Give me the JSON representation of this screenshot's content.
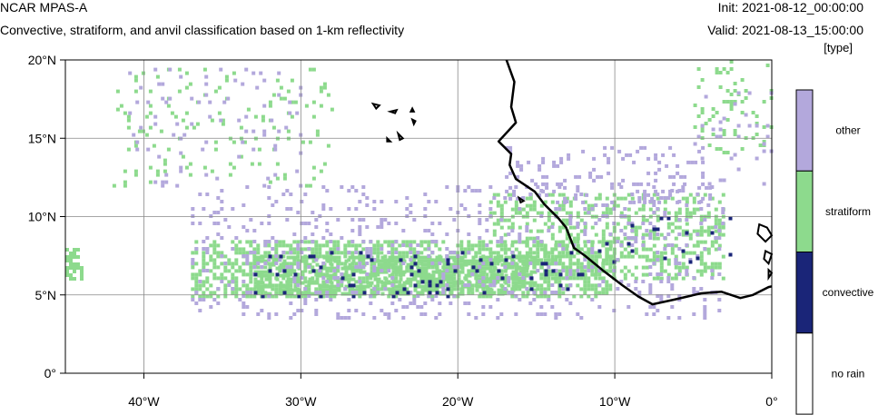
{
  "header": {
    "model": "NCAR MPAS-A",
    "description": "Convective, stratiform, and anvil classification based on 1-km reflectivity",
    "init": "Init: 2021-08-12_00:00:00",
    "valid": "Valid: 2021-08-13_15:00:00",
    "units": "[type]"
  },
  "map": {
    "extent": {
      "lon": [
        -45,
        0
      ],
      "lat": [
        0,
        20
      ]
    },
    "lat_ticks": [
      {
        "value": 20,
        "label": "20°N"
      },
      {
        "value": 15,
        "label": "15°N"
      },
      {
        "value": 10,
        "label": "10°N"
      },
      {
        "value": 5,
        "label": "5°N"
      },
      {
        "value": 0,
        "label": "0°"
      }
    ],
    "lon_ticks": [
      {
        "value": -40,
        "label": "40°W"
      },
      {
        "value": -30,
        "label": "30°W"
      },
      {
        "value": -20,
        "label": "20°W"
      },
      {
        "value": -10,
        "label": "10°W"
      },
      {
        "value": 0,
        "label": "0°"
      }
    ],
    "gridlines": true,
    "coastline": [
      [
        -16.9,
        20
      ],
      [
        -16.4,
        18.6
      ],
      [
        -16.6,
        17
      ],
      [
        -16.3,
        16
      ],
      [
        -17.4,
        14.8
      ],
      [
        -16.6,
        14
      ],
      [
        -16.7,
        13.3
      ],
      [
        -16.3,
        12.4
      ],
      [
        -15.1,
        11.6
      ],
      [
        -14.5,
        10.8
      ],
      [
        -13.6,
        9.9
      ],
      [
        -13.1,
        9.3
      ],
      [
        -12.6,
        8
      ],
      [
        -11.9,
        7.5
      ],
      [
        -10.8,
        6.6
      ],
      [
        -9.5,
        5.6
      ],
      [
        -8.5,
        4.9
      ],
      [
        -7.6,
        4.4
      ],
      [
        -6.2,
        4.7
      ],
      [
        -4.5,
        5.1
      ],
      [
        -3.2,
        5.2
      ],
      [
        -2,
        4.8
      ],
      [
        -1.2,
        5
      ],
      [
        -0.2,
        5.5
      ],
      [
        0,
        5.55
      ]
    ],
    "islands": [
      [
        [
          -25.4,
          17.2
        ],
        [
          -25.0,
          17.1
        ],
        [
          -25.2,
          16.9
        ],
        [
          -25.4,
          17.2
        ]
      ],
      [
        [
          -24.3,
          16.7
        ],
        [
          -23.9,
          16.8
        ],
        [
          -24.0,
          16.6
        ],
        [
          -24.3,
          16.7
        ]
      ],
      [
        [
          -22.9,
          16.9
        ],
        [
          -22.8,
          16.7
        ],
        [
          -23.0,
          16.7
        ],
        [
          -22.9,
          16.9
        ]
      ],
      [
        [
          -22.9,
          16.2
        ],
        [
          -22.7,
          16.1
        ],
        [
          -22.8,
          15.9
        ],
        [
          -22.9,
          16.2
        ]
      ],
      [
        [
          -23.8,
          15.3
        ],
        [
          -23.5,
          15.0
        ],
        [
          -23.7,
          14.9
        ],
        [
          -23.8,
          15.3
        ]
      ],
      [
        [
          -24.5,
          15.0
        ],
        [
          -24.3,
          14.8
        ],
        [
          -24.5,
          14.8
        ],
        [
          -24.5,
          15.0
        ]
      ],
      [
        [
          -16.1,
          11.2
        ],
        [
          -15.8,
          11.0
        ],
        [
          -16.0,
          10.9
        ],
        [
          -16.1,
          11.2
        ]
      ],
      [
        [
          -0.8,
          9.5
        ],
        [
          -0.3,
          9.3
        ],
        [
          0,
          8.8
        ],
        [
          -0.4,
          8.4
        ],
        [
          -0.9,
          8.9
        ],
        [
          -0.8,
          9.5
        ]
      ],
      [
        [
          -0.4,
          7.8
        ],
        [
          0,
          7.6
        ],
        [
          -0.2,
          7.0
        ],
        [
          -0.5,
          7.3
        ],
        [
          -0.4,
          7.8
        ]
      ],
      [
        [
          -0.2,
          6.6
        ],
        [
          0,
          6.4
        ],
        [
          -0.2,
          6.1
        ],
        [
          -0.2,
          6.6
        ]
      ]
    ],
    "precip_regions": [
      {
        "type": "stratiform",
        "lon": [
          -37,
          -10
        ],
        "lat": [
          4.8,
          8.5
        ],
        "density": 0.5
      },
      {
        "type": "stratiform",
        "lon": [
          -33,
          -15
        ],
        "lat": [
          5.0,
          7.5
        ],
        "density": 0.65
      },
      {
        "type": "stratiform",
        "lon": [
          -18,
          -3
        ],
        "lat": [
          6.0,
          11.5
        ],
        "density": 0.32
      },
      {
        "type": "stratiform",
        "lon": [
          -42,
          -28
        ],
        "lat": [
          12.0,
          19.5
        ],
        "density": 0.06
      },
      {
        "type": "stratiform",
        "lon": [
          -5,
          0
        ],
        "lat": [
          14.0,
          20.0
        ],
        "density": 0.1
      },
      {
        "type": "stratiform",
        "lon": [
          -45,
          -44
        ],
        "lat": [
          6.0,
          8.0
        ],
        "density": 0.4
      },
      {
        "type": "other",
        "lon": [
          -37,
          -3
        ],
        "lat": [
          3.5,
          12.0
        ],
        "density": 0.12
      },
      {
        "type": "other",
        "lon": [
          -17,
          -4
        ],
        "lat": [
          11.0,
          14.5
        ],
        "density": 0.14
      },
      {
        "type": "other",
        "lon": [
          -41,
          -30
        ],
        "lat": [
          12.0,
          19.5
        ],
        "density": 0.05
      },
      {
        "type": "other",
        "lon": [
          -5,
          0
        ],
        "lat": [
          12.0,
          18.0
        ],
        "density": 0.06
      },
      {
        "type": "convective",
        "lon": [
          -33,
          -12
        ],
        "lat": [
          5.0,
          7.8
        ],
        "density": 0.06
      },
      {
        "type": "convective",
        "lon": [
          -12,
          -2
        ],
        "lat": [
          7.0,
          10.0
        ],
        "density": 0.03
      }
    ]
  },
  "colorbar": {
    "classes": [
      {
        "label": "other",
        "color": "#b3a8dc"
      },
      {
        "label": "stratiform",
        "color": "#8dda8d"
      },
      {
        "label": "convective",
        "color": "#1a2578"
      },
      {
        "label": "no rain",
        "color": "#ffffff"
      }
    ]
  }
}
